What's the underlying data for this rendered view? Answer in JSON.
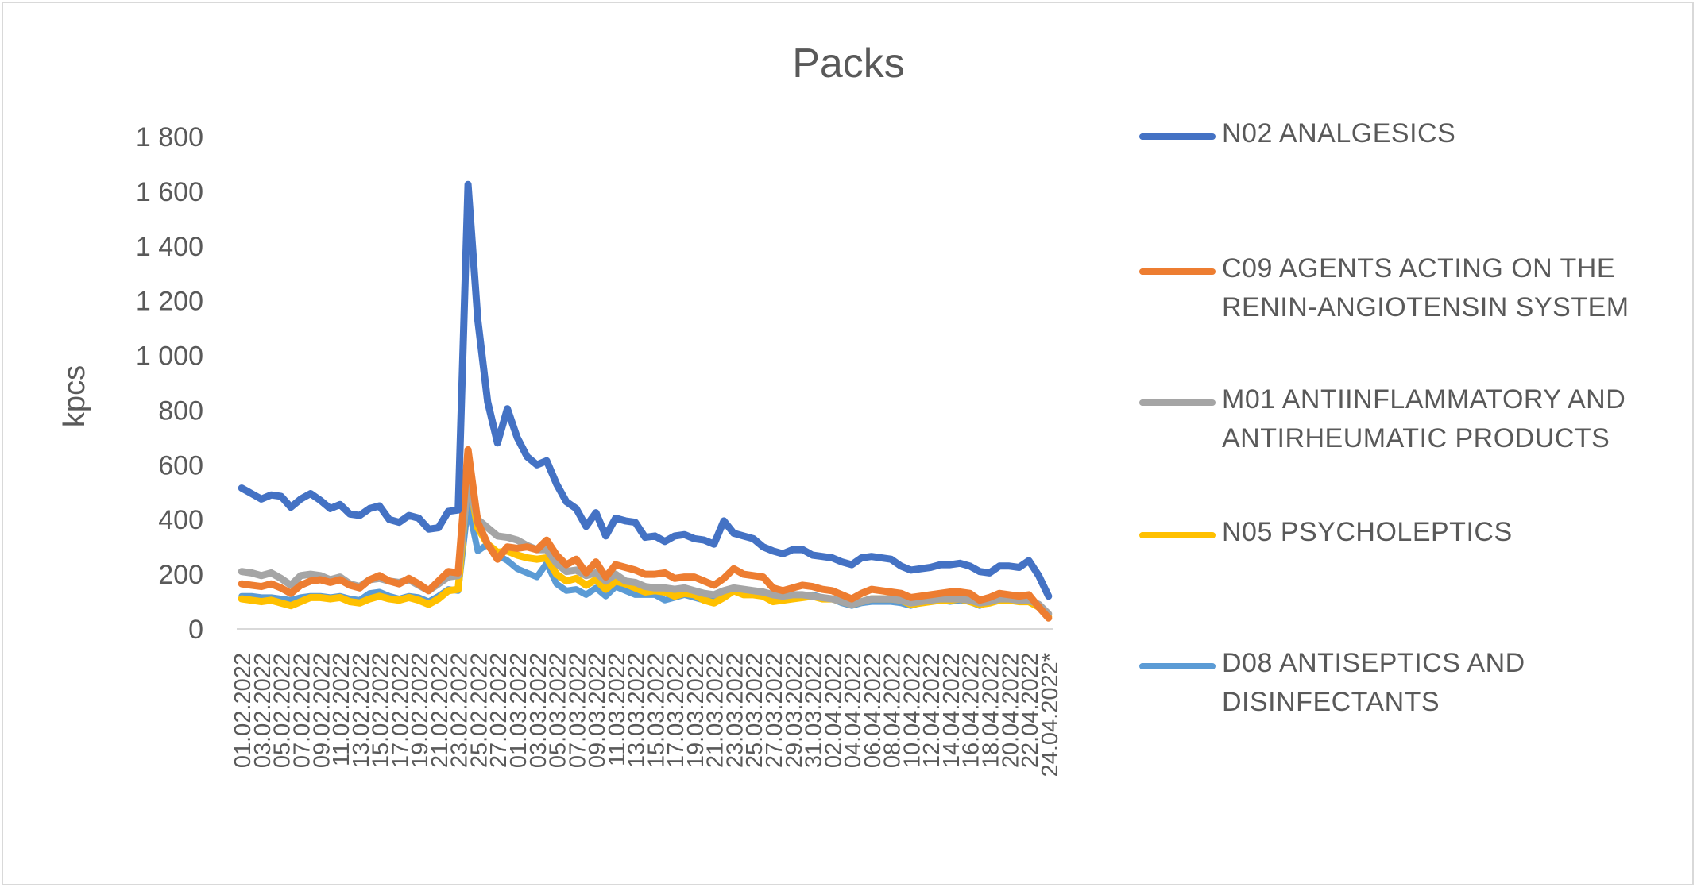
{
  "chart_data": {
    "type": "line",
    "title": "Packs",
    "ylabel": "kpcs",
    "xlabel": "",
    "ylim": [
      0,
      1800
    ],
    "yticks": [
      0,
      200,
      400,
      600,
      800,
      1000,
      1200,
      1400,
      1600,
      1800
    ],
    "ytick_labels": [
      "0",
      "200",
      "400",
      "600",
      "800",
      "1 000",
      "1 200",
      "1 400",
      "1 600",
      "1 800"
    ],
    "grid": false,
    "legend_position": "right",
    "x": [
      "01.02.2022",
      "02.02.2022",
      "03.02.2022",
      "04.02.2022",
      "05.02.2022",
      "06.02.2022",
      "07.02.2022",
      "08.02.2022",
      "09.02.2022",
      "10.02.2022",
      "11.02.2022",
      "12.02.2022",
      "13.02.2022",
      "14.02.2022",
      "15.02.2022",
      "16.02.2022",
      "17.02.2022",
      "18.02.2022",
      "19.02.2022",
      "20.02.2022",
      "21.02.2022",
      "22.02.2022",
      "23.02.2022",
      "24.02.2022",
      "25.02.2022",
      "26.02.2022",
      "27.02.2022",
      "28.02.2022",
      "01.03.2022",
      "02.03.2022",
      "03.03.2022",
      "04.03.2022",
      "05.03.2022",
      "06.03.2022",
      "07.03.2022",
      "08.03.2022",
      "09.03.2022",
      "10.03.2022",
      "11.03.2022",
      "12.03.2022",
      "13.03.2022",
      "14.03.2022",
      "15.03.2022",
      "16.03.2022",
      "17.03.2022",
      "18.03.2022",
      "19.03.2022",
      "20.03.2022",
      "21.03.2022",
      "22.03.2022",
      "23.03.2022",
      "24.03.2022",
      "25.03.2022",
      "26.03.2022",
      "27.03.2022",
      "28.03.2022",
      "29.03.2022",
      "30.03.2022",
      "31.03.2022",
      "01.04.2022",
      "02.04.2022",
      "03.04.2022",
      "04.04.2022",
      "05.04.2022",
      "06.04.2022",
      "07.04.2022",
      "08.04.2022",
      "09.04.2022",
      "10.04.2022",
      "11.04.2022",
      "12.04.2022",
      "13.04.2022",
      "14.04.2022",
      "15.04.2022",
      "16.04.2022",
      "17.04.2022",
      "18.04.2022",
      "19.04.2022",
      "20.04.2022",
      "21.04.2022",
      "22.04.2022",
      "23.04.2022",
      "24.04.2022*"
    ],
    "x_tick_labels": [
      "01.02.2022",
      "03.02.2022",
      "05.02.2022",
      "07.02.2022",
      "09.02.2022",
      "11.02.2022",
      "13.02.2022",
      "15.02.2022",
      "17.02.2022",
      "19.02.2022",
      "21.02.2022",
      "23.02.2022",
      "25.02.2022",
      "27.02.2022",
      "01.03.2022",
      "03.03.2022",
      "05.03.2022",
      "07.03.2022",
      "09.03.2022",
      "11.03.2022",
      "13.03.2022",
      "15.03.2022",
      "17.03.2022",
      "19.03.2022",
      "21.03.2022",
      "23.03.2022",
      "25.03.2022",
      "27.03.2022",
      "29.03.2022",
      "31.03.2022",
      "02.04.2022",
      "04.04.2022",
      "06.04.2022",
      "08.04.2022",
      "10.04.2022",
      "12.04.2022",
      "14.04.2022",
      "16.04.2022",
      "18.04.2022",
      "20.04.2022",
      "22.04.2022",
      "24.04.2022*"
    ],
    "series": [
      {
        "name": "N02 ANALGESICS",
        "color": "#4472c4",
        "values": [
          515,
          495,
          475,
          490,
          485,
          445,
          475,
          495,
          470,
          440,
          455,
          420,
          415,
          440,
          450,
          400,
          390,
          415,
          405,
          365,
          370,
          430,
          435,
          1625,
          1130,
          830,
          680,
          805,
          700,
          630,
          600,
          615,
          530,
          465,
          440,
          375,
          425,
          340,
          405,
          395,
          390,
          335,
          340,
          320,
          340,
          345,
          330,
          325,
          310,
          395,
          350,
          340,
          330,
          300,
          285,
          275,
          290,
          290,
          270,
          265,
          260,
          245,
          235,
          260,
          265,
          260,
          255,
          230,
          215,
          220,
          225,
          235,
          235,
          240,
          230,
          210,
          205,
          230,
          230,
          225,
          250,
          195,
          120
        ],
        "lw": 9
      },
      {
        "name": "C09 AGENTS ACTING ON THE RENIN-ANGIOTENSIN SYSTEM",
        "color": "#ed7d31",
        "values": [
          165,
          160,
          155,
          165,
          150,
          130,
          160,
          175,
          180,
          170,
          180,
          160,
          150,
          180,
          195,
          175,
          165,
          185,
          165,
          140,
          175,
          210,
          205,
          655,
          390,
          310,
          255,
          300,
          295,
          300,
          290,
          325,
          270,
          235,
          255,
          205,
          245,
          190,
          235,
          225,
          215,
          200,
          200,
          205,
          185,
          190,
          190,
          175,
          160,
          185,
          220,
          200,
          195,
          190,
          150,
          140,
          150,
          160,
          155,
          145,
          140,
          125,
          110,
          130,
          145,
          140,
          135,
          130,
          115,
          120,
          125,
          130,
          135,
          135,
          130,
          105,
          115,
          130,
          125,
          120,
          125,
          80,
          40
        ],
        "lw": 9
      },
      {
        "name": "M01 ANTIINFLAMMATORY AND ANTIRHEUMATIC PRODUCTS",
        "color": "#a5a5a5",
        "values": [
          210,
          205,
          195,
          205,
          185,
          160,
          195,
          200,
          195,
          180,
          190,
          165,
          155,
          180,
          185,
          175,
          170,
          180,
          160,
          140,
          165,
          190,
          195,
          540,
          400,
          370,
          340,
          335,
          325,
          305,
          290,
          290,
          240,
          210,
          215,
          195,
          205,
          175,
          200,
          175,
          170,
          155,
          150,
          150,
          145,
          150,
          140,
          130,
          125,
          140,
          150,
          145,
          140,
          135,
          125,
          120,
          125,
          125,
          120,
          115,
          110,
          100,
          90,
          100,
          110,
          110,
          110,
          105,
          95,
          100,
          105,
          110,
          110,
          110,
          105,
          95,
          100,
          110,
          110,
          105,
          105,
          90,
          55
        ],
        "lw": 9
      },
      {
        "name": "N05 PSYCHOLEPTICS",
        "color": "#ffc000",
        "values": [
          110,
          105,
          100,
          105,
          95,
          85,
          100,
          115,
          115,
          110,
          115,
          100,
          95,
          110,
          120,
          110,
          105,
          115,
          105,
          90,
          110,
          140,
          145,
          565,
          370,
          310,
          280,
          285,
          270,
          260,
          255,
          260,
          200,
          175,
          185,
          160,
          180,
          145,
          175,
          165,
          150,
          135,
          140,
          135,
          120,
          130,
          125,
          105,
          95,
          115,
          140,
          125,
          125,
          120,
          100,
          105,
          110,
          115,
          120,
          110,
          110,
          100,
          90,
          100,
          110,
          110,
          110,
          105,
          90,
          95,
          100,
          105,
          105,
          110,
          100,
          90,
          95,
          105,
          105,
          100,
          100,
          80,
          45
        ],
        "lw": 9
      },
      {
        "name": "D08 ANTISEPTICS AND DISINFECTANTS",
        "color": "#5b9bd5",
        "values": [
          120,
          120,
          115,
          115,
          110,
          105,
          115,
          120,
          120,
          115,
          120,
          110,
          105,
          130,
          135,
          120,
          110,
          120,
          115,
          100,
          120,
          145,
          140,
          455,
          285,
          310,
          270,
          250,
          220,
          205,
          190,
          240,
          165,
          140,
          145,
          125,
          150,
          120,
          155,
          140,
          125,
          125,
          125,
          105,
          115,
          125,
          115,
          105,
          110,
          120,
          140,
          130,
          130,
          125,
          110,
          115,
          115,
          120,
          125,
          115,
          110,
          95,
          85,
          95,
          100,
          100,
          100,
          95,
          85,
          95,
          100,
          105,
          100,
          105,
          100,
          85,
          100,
          105,
          105,
          100,
          105,
          85,
          55
        ],
        "lw": 8
      }
    ]
  }
}
